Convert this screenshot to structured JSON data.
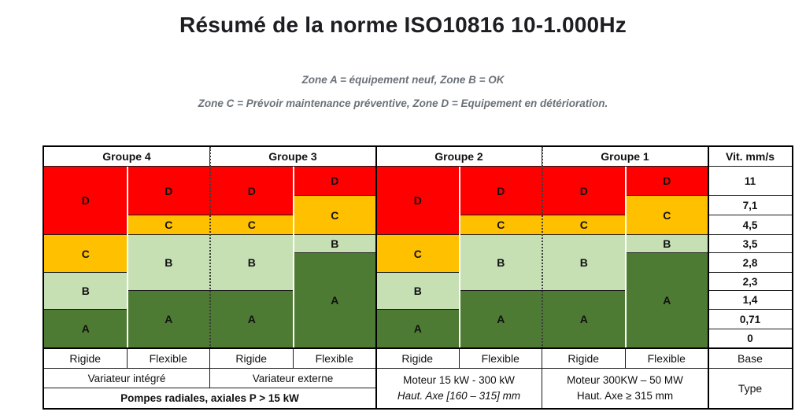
{
  "page": {
    "title": "Résumé de la norme ISO10816 10-1.000Hz",
    "subtitle_line1": "Zone A = équipement neuf, Zone B = OK",
    "subtitle_line2": "Zone C = Prévoir maintenance préventive, Zone D = Equipement en détérioration."
  },
  "colors": {
    "zone_A": "#4e7b33",
    "zone_B": "#c6e0b4",
    "zone_C": "#ffc000",
    "zone_D": "#fe0000",
    "title_text": "#1d1d22",
    "subtitle_text": "#6b7177",
    "grid_line": "#1a1a1a"
  },
  "chart_data": {
    "type": "table",
    "title": "Résumé de la norme ISO10816 10-1.000Hz",
    "frequency_range": "10-1.000Hz",
    "notes": [
      "Zone A = équipement neuf, Zone B = OK",
      "Zone C = Prévoir maintenance préventive, Zone D = Equipement en détérioration."
    ],
    "velocity_axis": {
      "header": "Vit. mm/s",
      "tick_labels": [
        "11",
        "7,1",
        "4,5",
        "3,5",
        "2,8",
        "2,3",
        "1,4",
        "0,71",
        "0"
      ],
      "values_mm_s": [
        11,
        7.1,
        4.5,
        3.5,
        2.8,
        2.3,
        1.4,
        0.71,
        0
      ]
    },
    "groups": [
      {
        "label": "Groupe 4",
        "type_row": "Variateur intégré",
        "columns": [
          {
            "mount": "Rigide",
            "zones_top_to_bottom": [
              {
                "zone": "D",
                "rows": 3
              },
              {
                "zone": "C",
                "rows": 2
              },
              {
                "zone": "B",
                "rows": 2
              },
              {
                "zone": "A",
                "rows": 2
              }
            ]
          },
          {
            "mount": "Flexible",
            "zones_top_to_bottom": [
              {
                "zone": "D",
                "rows": 2
              },
              {
                "zone": "C",
                "rows": 1
              },
              {
                "zone": "B",
                "rows": 3
              },
              {
                "zone": "A",
                "rows": 3
              }
            ]
          }
        ]
      },
      {
        "label": "Groupe 3",
        "type_row": "Variateur externe",
        "columns": [
          {
            "mount": "Rigide",
            "zones_top_to_bottom": [
              {
                "zone": "D",
                "rows": 2
              },
              {
                "zone": "C",
                "rows": 1
              },
              {
                "zone": "B",
                "rows": 3
              },
              {
                "zone": "A",
                "rows": 3
              }
            ]
          },
          {
            "mount": "Flexible",
            "zones_top_to_bottom": [
              {
                "zone": "D",
                "rows": 1
              },
              {
                "zone": "C",
                "rows": 2
              },
              {
                "zone": "B",
                "rows": 1
              },
              {
                "zone": "A",
                "rows": 5
              }
            ]
          }
        ]
      },
      {
        "label": "Groupe 2",
        "type_row": "Moteur 15 kW - 300 kW",
        "type_row2": "Haut. Axe [160 – 315] mm",
        "type_row2_italic": true,
        "columns": [
          {
            "mount": "Rigide",
            "zones_top_to_bottom": [
              {
                "zone": "D",
                "rows": 3
              },
              {
                "zone": "C",
                "rows": 2
              },
              {
                "zone": "B",
                "rows": 2
              },
              {
                "zone": "A",
                "rows": 2
              }
            ]
          },
          {
            "mount": "Flexible",
            "zones_top_to_bottom": [
              {
                "zone": "D",
                "rows": 2
              },
              {
                "zone": "C",
                "rows": 1
              },
              {
                "zone": "B",
                "rows": 3
              },
              {
                "zone": "A",
                "rows": 3
              }
            ]
          }
        ]
      },
      {
        "label": "Groupe 1",
        "type_row": "Moteur 300KW – 50 MW",
        "type_row2": "Haut. Axe ≥ 315 mm",
        "type_row2_italic": false,
        "columns": [
          {
            "mount": "Rigide",
            "zones_top_to_bottom": [
              {
                "zone": "D",
                "rows": 2
              },
              {
                "zone": "C",
                "rows": 1
              },
              {
                "zone": "B",
                "rows": 3
              },
              {
                "zone": "A",
                "rows": 3
              }
            ]
          },
          {
            "mount": "Flexible",
            "zones_top_to_bottom": [
              {
                "zone": "D",
                "rows": 1
              },
              {
                "zone": "C",
                "rows": 2
              },
              {
                "zone": "B",
                "rows": 1
              },
              {
                "zone": "A",
                "rows": 5
              }
            ]
          }
        ]
      }
    ],
    "footer": {
      "base_label": "Base",
      "type_label": "Type",
      "pompes_label": "Pompes radiales, axiales P > 15 kW"
    }
  }
}
